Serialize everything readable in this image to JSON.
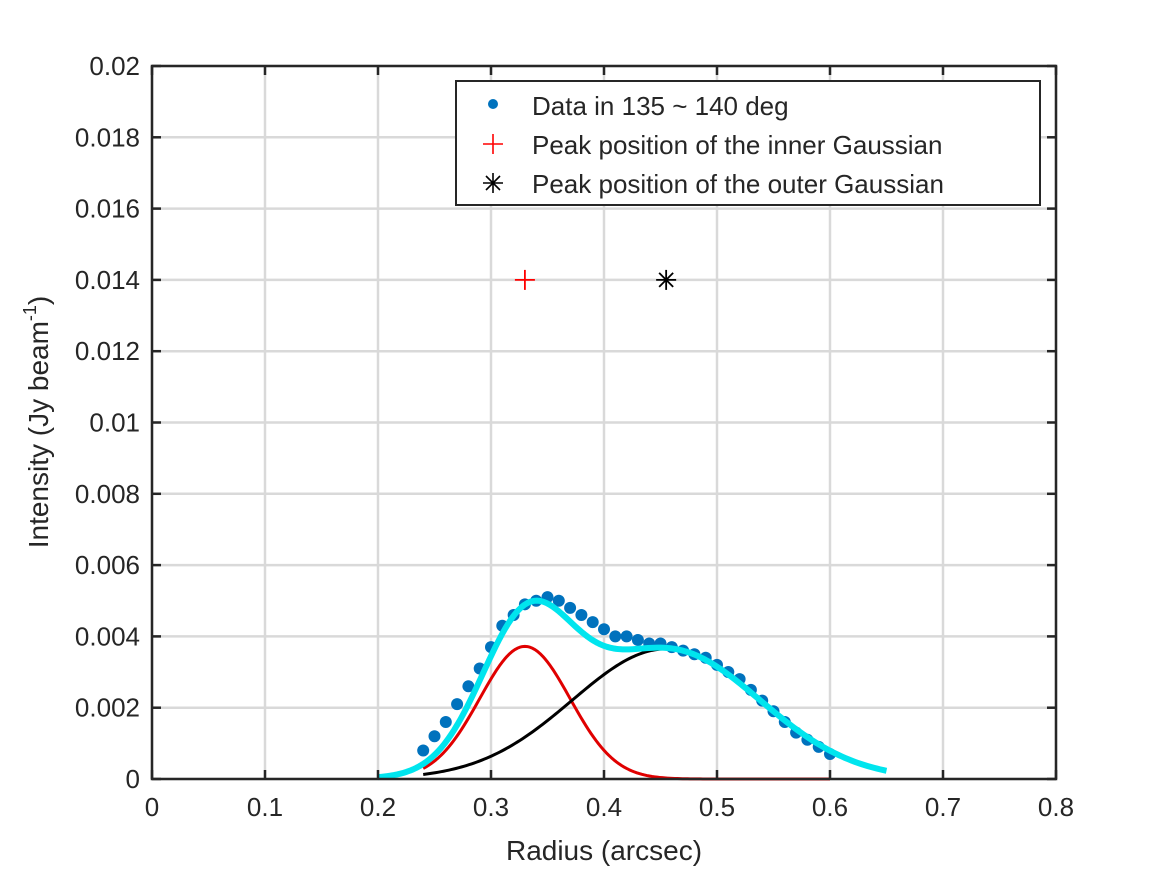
{
  "chart_data": {
    "type": "scatter",
    "xlabel": "Radius (arcsec)",
    "ylabel_main": "Intensity (Jy beam",
    "ylabel_sup": "-1",
    "ylabel_close": ")",
    "xlim": [
      0,
      0.8
    ],
    "ylim": [
      0,
      0.02
    ],
    "xticks": [
      0,
      0.1,
      0.2,
      0.3,
      0.4,
      0.5,
      0.6,
      0.7,
      0.8
    ],
    "xtick_labels": [
      "0",
      "0.1",
      "0.2",
      "0.3",
      "0.4",
      "0.5",
      "0.6",
      "0.7",
      "0.8"
    ],
    "yticks": [
      0,
      0.002,
      0.004,
      0.006,
      0.008,
      0.01,
      0.012,
      0.014,
      0.016,
      0.018,
      0.02
    ],
    "ytick_labels": [
      "0",
      "0.002",
      "0.004",
      "0.006",
      "0.008",
      "0.01",
      "0.012",
      "0.014",
      "0.016",
      "0.018",
      "0.02"
    ],
    "grid": true,
    "legend_position": "top-right",
    "legend": [
      {
        "label": "Data in 135 ~ 140 deg",
        "marker": "dot",
        "color": "#0072BD"
      },
      {
        "label": "Peak position of the inner Gaussian",
        "marker": "plus",
        "color": "#FF0000"
      },
      {
        "label": "Peak position of the outer Gaussian",
        "marker": "asterisk",
        "color": "#000000"
      }
    ],
    "data_points": {
      "color": "#0072BD",
      "x": [
        0.24,
        0.25,
        0.26,
        0.27,
        0.28,
        0.29,
        0.3,
        0.31,
        0.32,
        0.33,
        0.34,
        0.35,
        0.36,
        0.37,
        0.38,
        0.39,
        0.4,
        0.41,
        0.42,
        0.43,
        0.44,
        0.45,
        0.46,
        0.47,
        0.48,
        0.49,
        0.5,
        0.51,
        0.52,
        0.53,
        0.54,
        0.55,
        0.56,
        0.57,
        0.58,
        0.59,
        0.6
      ],
      "y": [
        0.0008,
        0.0012,
        0.0016,
        0.0021,
        0.0026,
        0.0031,
        0.0037,
        0.0043,
        0.0046,
        0.0049,
        0.005,
        0.0051,
        0.005,
        0.0048,
        0.0046,
        0.0044,
        0.0042,
        0.004,
        0.004,
        0.0039,
        0.0038,
        0.0038,
        0.0037,
        0.0036,
        0.0035,
        0.0034,
        0.0032,
        0.003,
        0.0028,
        0.0025,
        0.0022,
        0.0019,
        0.0016,
        0.0013,
        0.0011,
        0.0009,
        0.0007
      ]
    },
    "inner_gaussian": {
      "color": "#E00000",
      "amplitude": 0.00372,
      "center": 0.33,
      "sigma": 0.04,
      "x_start": 0.24,
      "x_end": 0.6
    },
    "outer_gaussian": {
      "color": "#000000",
      "amplitude": 0.00365,
      "center": 0.455,
      "sigma": 0.083,
      "x_start": 0.24,
      "x_end": 0.6
    },
    "total_fit": {
      "color": "#00E5EE",
      "x_start": 0.2,
      "x_end": 0.65
    },
    "peak_markers": [
      {
        "name": "inner-peak",
        "x": 0.33,
        "y": 0.014,
        "marker": "plus",
        "color": "#FF0000"
      },
      {
        "name": "outer-peak",
        "x": 0.455,
        "y": 0.014,
        "marker": "asterisk",
        "color": "#000000"
      }
    ]
  }
}
